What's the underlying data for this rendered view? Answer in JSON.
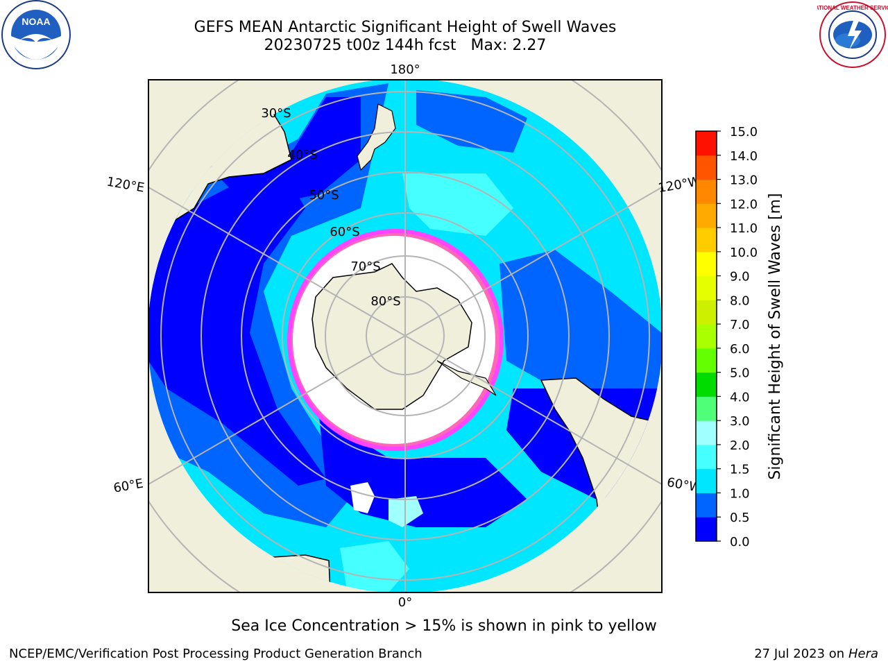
{
  "header": {
    "title_line1": "GEFS MEAN Antarctic Significant Height of Swell Waves",
    "title_line2": "20230725 t00z 144h fcst   Max: 2.27"
  },
  "map": {
    "projection": "south polar stereographic",
    "lon_labels": [
      "180°",
      "120°E",
      "120°W",
      "60°E",
      "60°W",
      "0°"
    ],
    "lat_labels": [
      "30°S",
      "40°S",
      "50°S",
      "60°S",
      "70°S",
      "80°S"
    ]
  },
  "colorbar": {
    "label": "Significant Height of Swell Waves [m]",
    "ticks": [
      "0.0",
      "0.5",
      "1.0",
      "1.5",
      "2.0",
      "3.0",
      "4.0",
      "5.0",
      "6.0",
      "7.0",
      "8.0",
      "9.0",
      "10.0",
      "11.0",
      "12.0",
      "13.0",
      "14.0",
      "15.0"
    ],
    "colors": [
      "#0000ff",
      "#0064ff",
      "#00e6ff",
      "#46ffff",
      "#a0ffff",
      "#50ff78",
      "#00dc00",
      "#64ff00",
      "#aaff00",
      "#ccf000",
      "#e6ff00",
      "#ffff00",
      "#ffcc00",
      "#ffaa00",
      "#ff8800",
      "#ff5500",
      "#ff1100"
    ]
  },
  "colors": {
    "land": "#efefdc",
    "grid": "#b4b4b4",
    "ice_pink": "#ff44ff",
    "ice_orange": "#ffaa33"
  },
  "note": "Sea Ice Concentration > 15% is shown in pink to yellow",
  "footer": {
    "left": "NCEP/EMC/Verification Post Processing Product Generation Branch",
    "right_date": "27 Jul 2023 on ",
    "right_host": "Hera"
  },
  "logos": {
    "left": "NOAA",
    "right": "NATIONAL WEATHER SERVICE"
  }
}
